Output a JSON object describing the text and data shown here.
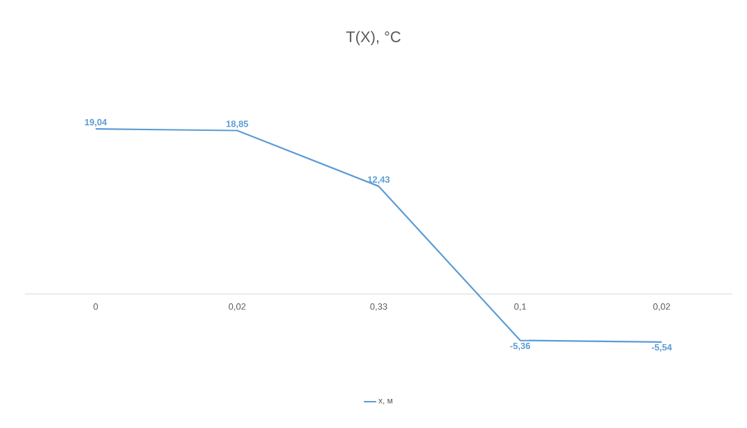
{
  "chart_data": {
    "type": "line",
    "title": "T(X), °C",
    "categories": [
      "0",
      "0,02",
      "0,33",
      "0,1",
      "0,02"
    ],
    "series": [
      {
        "name": "x, м",
        "color": "#5b9bd5",
        "values": [
          19.04,
          18.85,
          12.43,
          -5.36,
          -5.54
        ],
        "value_labels": [
          "19,04",
          "18,85",
          "12,43",
          "-5,36",
          "-5,54"
        ]
      }
    ],
    "legend": "bottom",
    "grid": false,
    "line_style": "solid"
  }
}
